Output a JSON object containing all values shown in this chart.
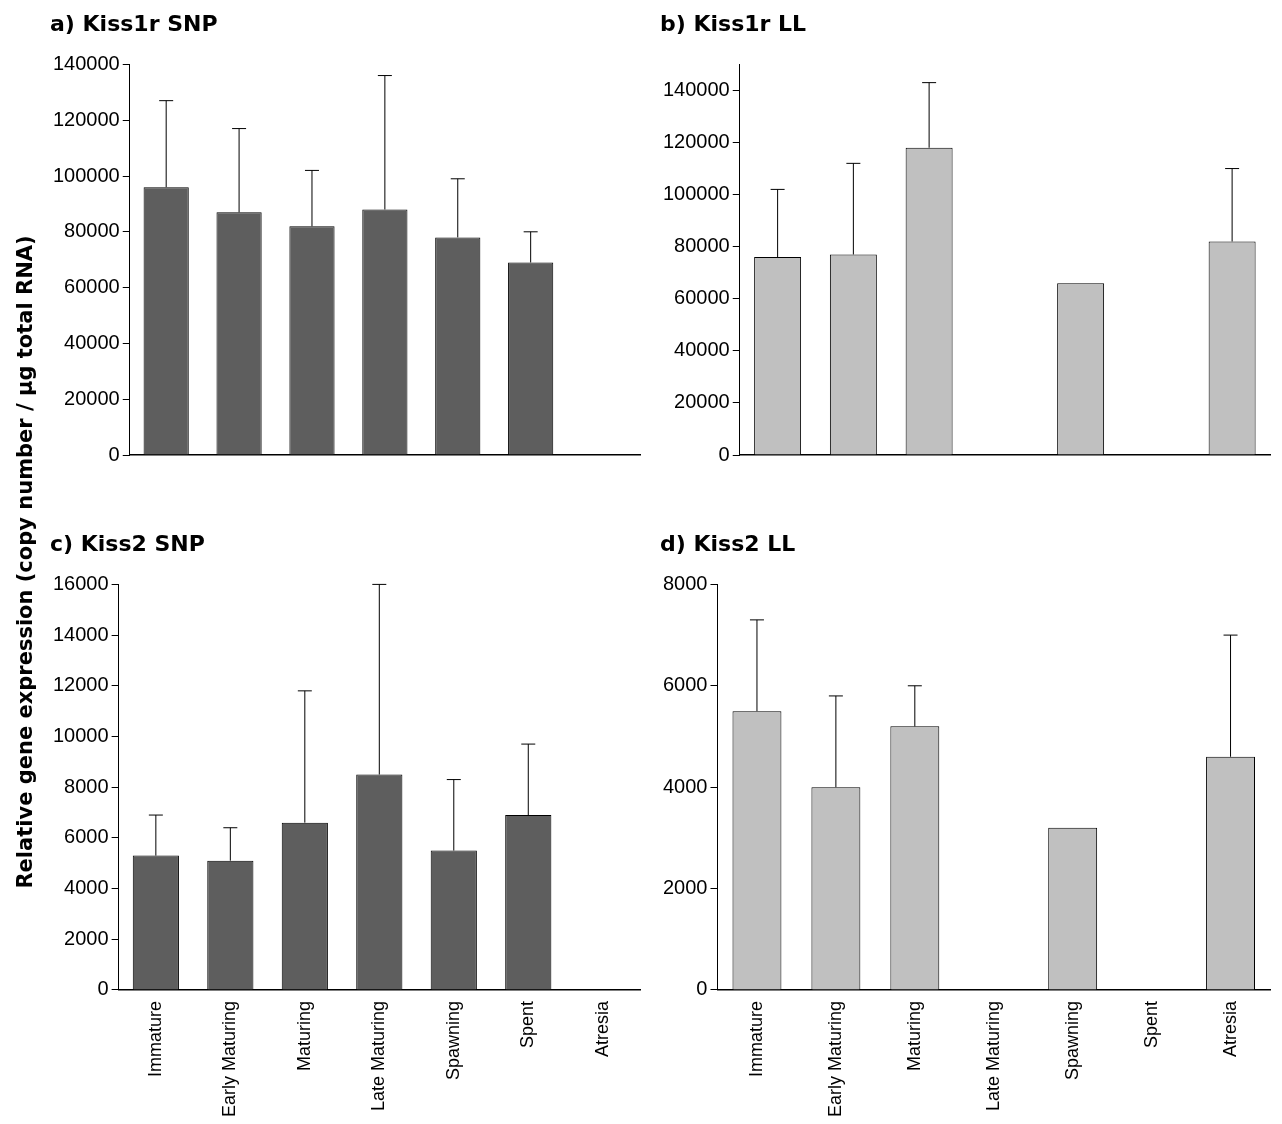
{
  "chart_data": [
    {
      "type": "bar",
      "title": "a) Kiss1r SNP",
      "ylabel": "Relative gene expression (copy number / µg total RNA)",
      "categories": [
        null,
        null,
        null,
        null,
        null,
        null,
        null
      ],
      "color": "#5e5e5e",
      "values": [
        96000,
        87000,
        82000,
        88000,
        78000,
        69000,
        null
      ],
      "errors": [
        [
          96000,
          127000
        ],
        [
          87000,
          117000
        ],
        [
          82000,
          102000
        ],
        [
          88000,
          136000
        ],
        [
          78000,
          99000
        ],
        [
          69000,
          80000
        ],
        null
      ],
      "ylim": [
        0,
        140000
      ],
      "yticks": [
        0,
        20000,
        40000,
        60000,
        80000,
        100000,
        120000,
        140000
      ],
      "grid": false,
      "legend": false,
      "tick_labels": "y"
    },
    {
      "type": "bar",
      "title": "b) Kiss1r LL",
      "categories": [
        null,
        null,
        null,
        null,
        null,
        null,
        null
      ],
      "color": "#c0c0c0",
      "values": [
        76000,
        77000,
        118000,
        null,
        66000,
        null,
        82000
      ],
      "errors": [
        [
          76000,
          102000
        ],
        [
          77000,
          112000
        ],
        [
          118000,
          143000
        ],
        null,
        null,
        null,
        [
          82000,
          110000
        ]
      ],
      "ylim": [
        0,
        150000
      ],
      "yticks": [
        0,
        20000,
        40000,
        60000,
        80000,
        100000,
        120000,
        140000
      ],
      "grid": false,
      "legend": false,
      "tick_labels": "y"
    },
    {
      "type": "bar",
      "title": "c) Kiss2 SNP",
      "categories": [
        "Immature",
        "Early Maturing",
        "Maturing",
        "Late Maturing",
        "Spawning",
        "Spent",
        "Atresia"
      ],
      "color": "#5e5e5e",
      "values": [
        5300,
        5100,
        6600,
        8500,
        5500,
        6900,
        null
      ],
      "errors": [
        [
          5300,
          6900
        ],
        [
          5100,
          6400
        ],
        [
          6600,
          11800
        ],
        [
          8500,
          16000
        ],
        [
          5500,
          8300
        ],
        [
          6900,
          9700
        ],
        null
      ],
      "ylim": [
        0,
        16000
      ],
      "yticks": [
        0,
        2000,
        4000,
        6000,
        8000,
        10000,
        12000,
        14000,
        16000
      ],
      "grid": false,
      "legend": false
    },
    {
      "type": "bar",
      "title": "d) Kiss2 LL",
      "categories": [
        "Immature",
        "Early Maturing",
        "Maturing",
        "Late Maturing",
        "Spawning",
        "Spent",
        "Atresia"
      ],
      "color": "#c0c0c0",
      "values": [
        5500,
        4000,
        5200,
        null,
        3200,
        null,
        4600
      ],
      "errors": [
        [
          5500,
          7300
        ],
        [
          4000,
          5800
        ],
        [
          5200,
          6000
        ],
        null,
        null,
        null,
        [
          4600,
          7000
        ]
      ],
      "ylim": [
        0,
        8000
      ],
      "yticks": [
        0,
        2000,
        4000,
        6000,
        8000
      ],
      "grid": false,
      "legend": false
    }
  ]
}
